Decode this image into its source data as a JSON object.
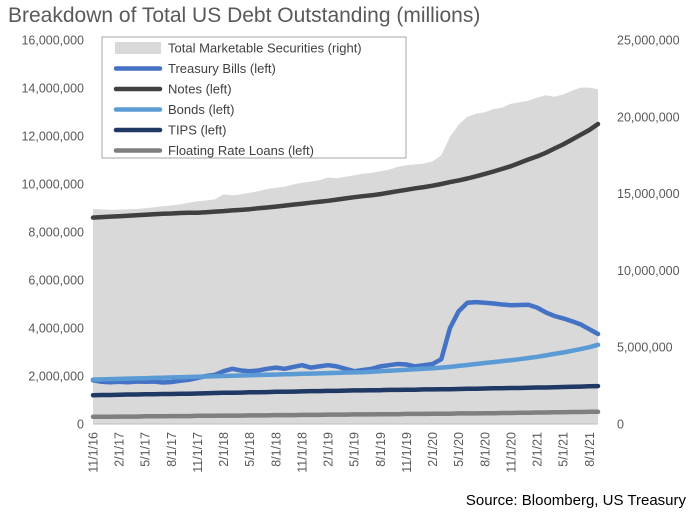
{
  "title": "Breakdown of Total US Debt Outstanding (millions)",
  "source": "Source: Bloomberg, US Treasury",
  "chart_data": {
    "type": "line",
    "title": "Breakdown of Total US Debt Outstanding (millions)",
    "left_axis": {
      "ylim": [
        0,
        16000000
      ],
      "ticks": [
        "0",
        "2,000,000",
        "4,000,000",
        "6,000,000",
        "8,000,000",
        "10,000,000",
        "12,000,000",
        "14,000,000",
        "16,000,000"
      ]
    },
    "right_axis": {
      "ylim": [
        0,
        25000000
      ],
      "ticks": [
        "0",
        "5,000,000",
        "10,000,000",
        "15,000,000",
        "20,000,000",
        "25,000,000"
      ]
    },
    "x_tick_labels": [
      "11/1/16",
      "2/1/17",
      "5/1/17",
      "8/1/17",
      "11/1/17",
      "2/1/18",
      "5/1/18",
      "8/1/18",
      "11/1/18",
      "2/1/19",
      "5/1/19",
      "8/1/19",
      "11/1/19",
      "2/1/20",
      "5/1/20",
      "8/1/20",
      "11/1/20",
      "2/1/21",
      "5/1/21",
      "8/1/21"
    ],
    "x": [
      "11/1/16",
      "12/1/16",
      "1/1/17",
      "2/1/17",
      "3/1/17",
      "4/1/17",
      "5/1/17",
      "6/1/17",
      "7/1/17",
      "8/1/17",
      "9/1/17",
      "10/1/17",
      "11/1/17",
      "12/1/17",
      "1/1/18",
      "2/1/18",
      "3/1/18",
      "4/1/18",
      "5/1/18",
      "6/1/18",
      "7/1/18",
      "8/1/18",
      "9/1/18",
      "10/1/18",
      "11/1/18",
      "12/1/18",
      "1/1/19",
      "2/1/19",
      "3/1/19",
      "4/1/19",
      "5/1/19",
      "6/1/19",
      "7/1/19",
      "8/1/19",
      "9/1/19",
      "10/1/19",
      "11/1/19",
      "12/1/19",
      "1/1/20",
      "2/1/20",
      "3/1/20",
      "4/1/20",
      "5/1/20",
      "6/1/20",
      "7/1/20",
      "8/1/20",
      "9/1/20",
      "10/1/20",
      "11/1/20",
      "12/1/20",
      "1/1/21",
      "2/1/21",
      "3/1/21",
      "4/1/21",
      "5/1/21",
      "6/1/21",
      "7/1/21",
      "8/1/21",
      "9/1/21"
    ],
    "grid": false,
    "legend_position": "top-left",
    "series": [
      {
        "name": "Total Marketable Securities (right)",
        "type": "area",
        "axis": "right",
        "color": "#d9d9d9",
        "values": [
          14000000,
          13970000,
          13940000,
          13960000,
          13980000,
          14000000,
          14050000,
          14100000,
          14170000,
          14230000,
          14300000,
          14400000,
          14500000,
          14550000,
          14620000,
          14950000,
          14880000,
          14950000,
          15050000,
          15150000,
          15300000,
          15380000,
          15450000,
          15600000,
          15700000,
          15780000,
          15880000,
          16050000,
          16000000,
          16100000,
          16200000,
          16300000,
          16350000,
          16450000,
          16550000,
          16750000,
          16850000,
          16900000,
          16950000,
          17100000,
          17500000,
          18700000,
          19500000,
          20000000,
          20200000,
          20300000,
          20500000,
          20600000,
          20850000,
          20950000,
          21050000,
          21250000,
          21400000,
          21300000,
          21450000,
          21700000,
          21900000,
          21900000,
          21800000
        ]
      },
      {
        "name": "Treasury Bills (left)",
        "axis": "left",
        "color": "#4472c4",
        "values": [
          1820000,
          1760000,
          1740000,
          1760000,
          1740000,
          1770000,
          1760000,
          1770000,
          1730000,
          1750000,
          1800000,
          1840000,
          1920000,
          2000000,
          2050000,
          2200000,
          2300000,
          2230000,
          2200000,
          2230000,
          2300000,
          2350000,
          2300000,
          2380000,
          2450000,
          2350000,
          2400000,
          2450000,
          2400000,
          2300000,
          2200000,
          2250000,
          2300000,
          2400000,
          2450000,
          2500000,
          2480000,
          2400000,
          2450000,
          2500000,
          2700000,
          4000000,
          4700000,
          5050000,
          5080000,
          5050000,
          5020000,
          4980000,
          4950000,
          4960000,
          4970000,
          4850000,
          4650000,
          4500000,
          4400000,
          4280000,
          4150000,
          3950000,
          3750000
        ]
      },
      {
        "name": "Notes (left)",
        "axis": "left",
        "color": "#404040",
        "values": [
          8600000,
          8620000,
          8640000,
          8660000,
          8680000,
          8700000,
          8720000,
          8740000,
          8760000,
          8770000,
          8790000,
          8800000,
          8800000,
          8820000,
          8850000,
          8870000,
          8900000,
          8920000,
          8950000,
          8990000,
          9020000,
          9060000,
          9100000,
          9140000,
          9180000,
          9220000,
          9260000,
          9300000,
          9350000,
          9400000,
          9450000,
          9490000,
          9530000,
          9580000,
          9640000,
          9700000,
          9760000,
          9820000,
          9870000,
          9930000,
          10000000,
          10080000,
          10150000,
          10230000,
          10320000,
          10420000,
          10520000,
          10630000,
          10740000,
          10880000,
          11020000,
          11150000,
          11300000,
          11480000,
          11650000,
          11850000,
          12050000,
          12250000,
          12500000
        ]
      },
      {
        "name": "Bonds (left)",
        "axis": "left",
        "color": "#5b9bd5",
        "values": [
          1850000,
          1860000,
          1870000,
          1880000,
          1890000,
          1900000,
          1910000,
          1920000,
          1930000,
          1940000,
          1950000,
          1960000,
          1970000,
          1980000,
          1990000,
          2000000,
          2010000,
          2020000,
          2030000,
          2040000,
          2050000,
          2060000,
          2070000,
          2080000,
          2090000,
          2100000,
          2110000,
          2120000,
          2130000,
          2140000,
          2150000,
          2160000,
          2180000,
          2200000,
          2220000,
          2240000,
          2260000,
          2280000,
          2300000,
          2320000,
          2350000,
          2380000,
          2420000,
          2460000,
          2500000,
          2540000,
          2580000,
          2620000,
          2660000,
          2700000,
          2750000,
          2800000,
          2860000,
          2920000,
          2980000,
          3050000,
          3120000,
          3200000,
          3300000
        ]
      },
      {
        "name": "TIPS (left)",
        "axis": "left",
        "color": "#203864",
        "values": [
          1200000,
          1210000,
          1210000,
          1220000,
          1230000,
          1230000,
          1240000,
          1240000,
          1250000,
          1250000,
          1260000,
          1260000,
          1270000,
          1280000,
          1290000,
          1300000,
          1300000,
          1310000,
          1320000,
          1320000,
          1330000,
          1340000,
          1340000,
          1350000,
          1360000,
          1370000,
          1370000,
          1380000,
          1380000,
          1390000,
          1400000,
          1400000,
          1410000,
          1410000,
          1420000,
          1420000,
          1430000,
          1430000,
          1440000,
          1440000,
          1450000,
          1450000,
          1460000,
          1470000,
          1470000,
          1480000,
          1490000,
          1490000,
          1500000,
          1500000,
          1510000,
          1520000,
          1520000,
          1530000,
          1540000,
          1550000,
          1560000,
          1570000,
          1580000
        ]
      },
      {
        "name": "Floating Rate Loans (left)",
        "axis": "left",
        "color": "#7f7f7f",
        "values": [
          300000,
          300000,
          300000,
          310000,
          310000,
          310000,
          320000,
          320000,
          320000,
          330000,
          330000,
          330000,
          340000,
          340000,
          340000,
          350000,
          350000,
          350000,
          360000,
          360000,
          360000,
          370000,
          370000,
          370000,
          380000,
          380000,
          380000,
          390000,
          390000,
          390000,
          400000,
          400000,
          400000,
          410000,
          410000,
          410000,
          420000,
          420000,
          420000,
          430000,
          430000,
          430000,
          440000,
          440000,
          440000,
          450000,
          450000,
          460000,
          460000,
          470000,
          470000,
          480000,
          480000,
          490000,
          490000,
          500000,
          500000,
          510000,
          510000
        ]
      }
    ]
  }
}
